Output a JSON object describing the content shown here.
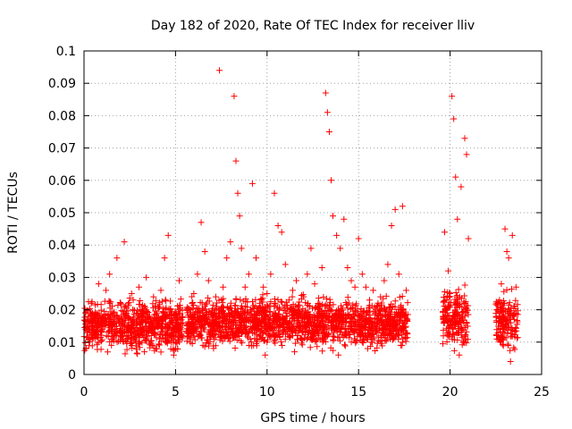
{
  "chart_data": {
    "type": "scatter",
    "title": "Day 182 of 2020, Rate Of TEC Index for receiver lliv",
    "xlabel": "GPS time / hours",
    "ylabel": "ROTI / TECUs",
    "xlim": [
      0,
      25
    ],
    "ylim": [
      0,
      0.1
    ],
    "x_ticks": [
      0,
      5,
      10,
      15,
      20,
      25
    ],
    "x_tick_labels": [
      "0",
      "5",
      "10",
      "15",
      "20",
      "25"
    ],
    "y_ticks": [
      0,
      0.01,
      0.02,
      0.03,
      0.04,
      0.05,
      0.06,
      0.07,
      0.08,
      0.09,
      0.1
    ],
    "y_tick_labels": [
      "0",
      "0.01",
      "0.02",
      "0.03",
      "0.04",
      "0.05",
      "0.06",
      "0.07",
      "0.08",
      "0.09",
      "0.1"
    ],
    "grid": true,
    "marker": "+",
    "marker_color": "#ff0000",
    "series": [
      {
        "name": "ROTI",
        "points": [
          [
            0.2,
            0.014
          ],
          [
            0.4,
            0.022
          ],
          [
            0.6,
            0.011
          ],
          [
            0.8,
            0.028
          ],
          [
            1.0,
            0.016
          ],
          [
            1.2,
            0.026
          ],
          [
            1.4,
            0.031
          ],
          [
            1.6,
            0.019
          ],
          [
            1.8,
            0.036
          ],
          [
            2.0,
            0.022
          ],
          [
            2.2,
            0.041
          ],
          [
            2.4,
            0.018
          ],
          [
            2.6,
            0.025
          ],
          [
            2.8,
            0.013
          ],
          [
            3.0,
            0.027
          ],
          [
            3.2,
            0.021
          ],
          [
            3.4,
            0.03
          ],
          [
            3.6,
            0.015
          ],
          [
            3.8,
            0.024
          ],
          [
            4.0,
            0.019
          ],
          [
            4.2,
            0.026
          ],
          [
            4.4,
            0.036
          ],
          [
            4.6,
            0.043
          ],
          [
            4.8,
            0.012
          ],
          [
            5.0,
            0.008
          ],
          [
            5.2,
            0.029
          ],
          [
            5.4,
            0.016
          ],
          [
            5.8,
            0.011
          ],
          [
            6.0,
            0.025
          ],
          [
            6.2,
            0.031
          ],
          [
            6.4,
            0.047
          ],
          [
            6.6,
            0.038
          ],
          [
            6.8,
            0.029
          ],
          [
            7.0,
            0.019
          ],
          [
            7.2,
            0.024
          ],
          [
            7.4,
            0.094
          ],
          [
            7.6,
            0.027
          ],
          [
            7.8,
            0.036
          ],
          [
            8.0,
            0.041
          ],
          [
            8.2,
            0.086
          ],
          [
            8.3,
            0.066
          ],
          [
            8.4,
            0.056
          ],
          [
            8.5,
            0.049
          ],
          [
            8.6,
            0.039
          ],
          [
            8.8,
            0.027
          ],
          [
            9.0,
            0.031
          ],
          [
            9.2,
            0.059
          ],
          [
            9.4,
            0.036
          ],
          [
            9.6,
            0.022
          ],
          [
            9.8,
            0.027
          ],
          [
            10.0,
            0.025
          ],
          [
            10.2,
            0.031
          ],
          [
            10.4,
            0.056
          ],
          [
            10.6,
            0.046
          ],
          [
            10.8,
            0.044
          ],
          [
            11.0,
            0.034
          ],
          [
            11.2,
            0.023
          ],
          [
            11.4,
            0.026
          ],
          [
            11.6,
            0.029
          ],
          [
            11.8,
            0.019
          ],
          [
            12.0,
            0.024
          ],
          [
            12.2,
            0.031
          ],
          [
            12.4,
            0.039
          ],
          [
            12.6,
            0.028
          ],
          [
            12.8,
            0.022
          ],
          [
            13.0,
            0.033
          ],
          [
            13.2,
            0.087
          ],
          [
            13.3,
            0.081
          ],
          [
            13.4,
            0.075
          ],
          [
            13.5,
            0.06
          ],
          [
            13.6,
            0.049
          ],
          [
            13.8,
            0.043
          ],
          [
            14.0,
            0.039
          ],
          [
            14.2,
            0.048
          ],
          [
            14.4,
            0.033
          ],
          [
            14.6,
            0.029
          ],
          [
            14.8,
            0.027
          ],
          [
            15.0,
            0.042
          ],
          [
            15.2,
            0.031
          ],
          [
            15.4,
            0.027
          ],
          [
            15.6,
            0.023
          ],
          [
            15.8,
            0.026
          ],
          [
            16.0,
            0.021
          ],
          [
            16.2,
            0.024
          ],
          [
            16.4,
            0.029
          ],
          [
            16.6,
            0.034
          ],
          [
            16.8,
            0.046
          ],
          [
            17.0,
            0.051
          ],
          [
            17.2,
            0.031
          ],
          [
            17.4,
            0.052
          ],
          [
            17.6,
            0.026
          ],
          [
            19.7,
            0.044
          ],
          [
            19.9,
            0.032
          ],
          [
            20.0,
            0.025
          ],
          [
            20.1,
            0.086
          ],
          [
            20.2,
            0.079
          ],
          [
            20.3,
            0.061
          ],
          [
            20.4,
            0.048
          ],
          [
            20.6,
            0.058
          ],
          [
            20.8,
            0.073
          ],
          [
            20.9,
            0.068
          ],
          [
            21.0,
            0.042
          ],
          [
            22.6,
            0.022
          ],
          [
            22.8,
            0.028
          ],
          [
            23.0,
            0.045
          ],
          [
            23.1,
            0.038
          ],
          [
            23.2,
            0.036
          ],
          [
            23.4,
            0.043
          ],
          [
            23.6,
            0.027
          ],
          [
            0.1,
            0.008
          ],
          [
            1.5,
            0.009
          ],
          [
            3.3,
            0.007
          ],
          [
            4.9,
            0.006
          ],
          [
            6.5,
            0.009
          ],
          [
            9.9,
            0.006
          ],
          [
            11.5,
            0.007
          ],
          [
            13.9,
            0.006
          ],
          [
            15.5,
            0.008
          ],
          [
            17.3,
            0.009
          ],
          [
            20.5,
            0.006
          ],
          [
            23.3,
            0.004
          ]
        ],
        "dense_bands": [
          {
            "x_range": [
              0.0,
              5.4
            ],
            "y_range": [
              0.005,
              0.025
            ]
          },
          {
            "x_range": [
              5.6,
              17.7
            ],
            "y_range": [
              0.006,
              0.026
            ]
          },
          {
            "x_range": [
              19.6,
              21.0
            ],
            "y_range": [
              0.005,
              0.03
            ]
          },
          {
            "x_range": [
              22.5,
              23.7
            ],
            "y_range": [
              0.004,
              0.028
            ]
          }
        ]
      }
    ]
  }
}
